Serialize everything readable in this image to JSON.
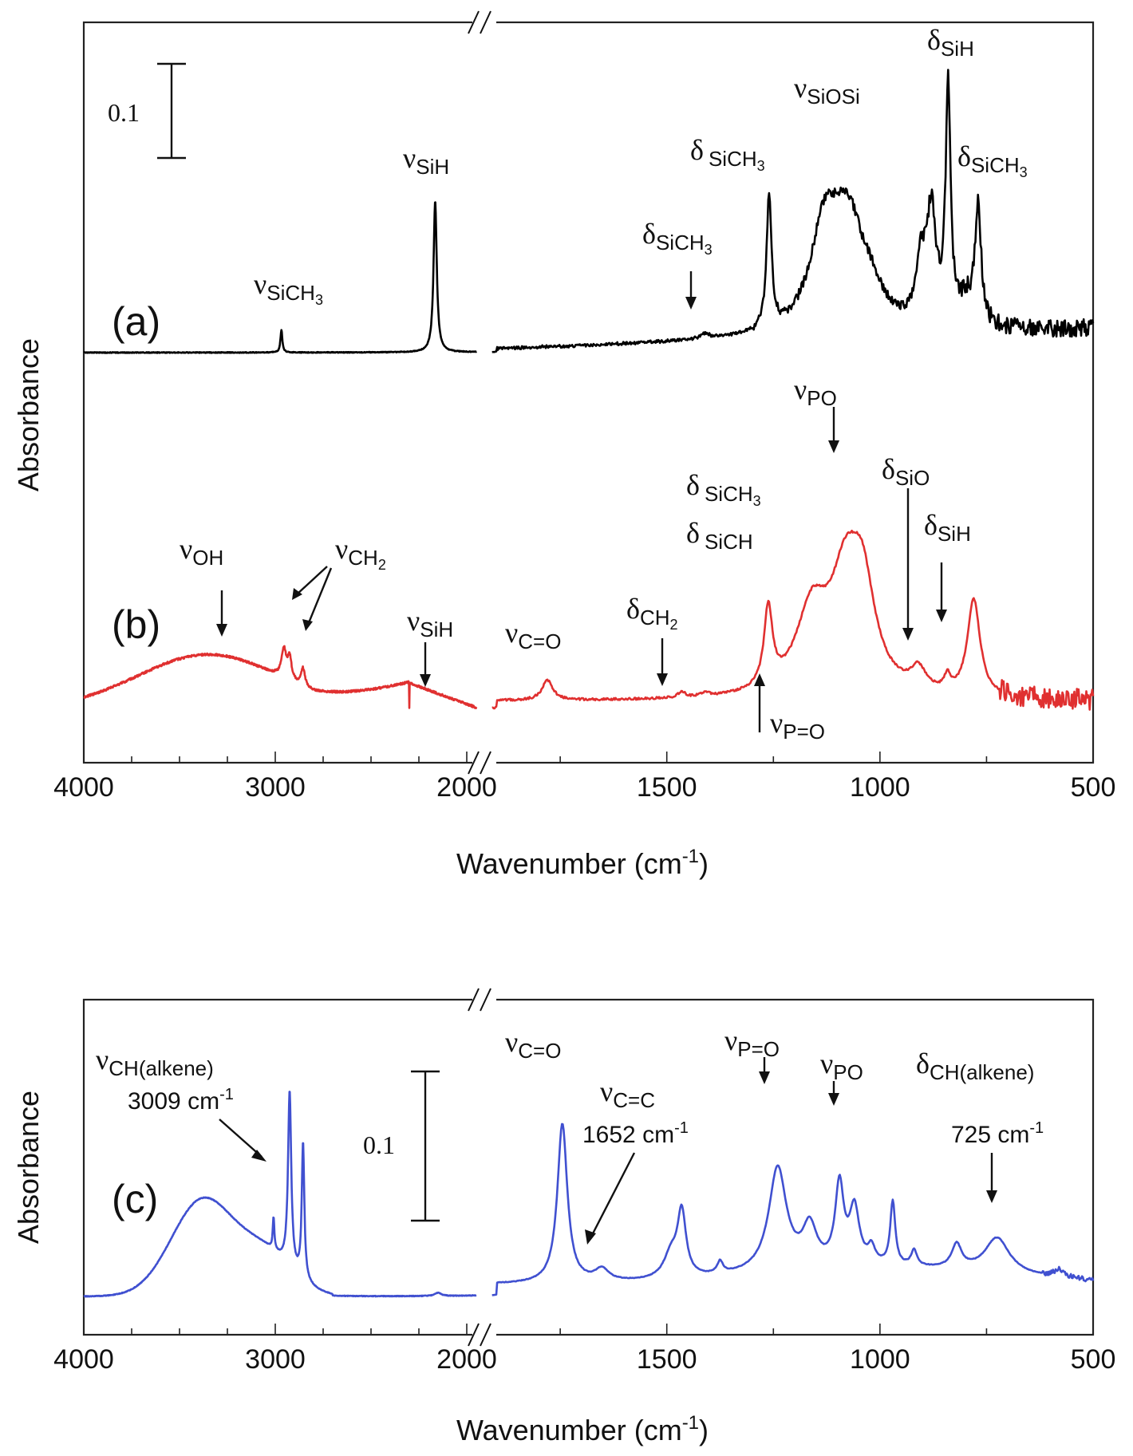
{
  "chart_data": [
    {
      "type": "line",
      "panel_label": "(a)",
      "ylabel": "Absorbance",
      "xlabel": "Wavenumber (cm-1)",
      "xlim": [
        4000,
        500
      ],
      "x_break": [
        1950,
        1900
      ],
      "x_ticks": [
        "4000",
        "3000",
        "2000",
        "1500",
        "1000",
        "500"
      ],
      "scale_bar": "0.1",
      "series": [
        {
          "color": "#000000",
          "peaks": [
            {
              "x": 2970,
              "y": 0.02
            },
            {
              "x": 2165,
              "y": 0.23
            },
            {
              "x": 1410,
              "y": 0.02
            },
            {
              "x": 1260,
              "y": 0.23
            },
            {
              "x": 1090,
              "y": 0.33
            },
            {
              "x": 890,
              "y": 0.27
            },
            {
              "x": 840,
              "y": 0.37
            },
            {
              "x": 770,
              "y": 0.16
            }
          ]
        }
      ],
      "annotations": [
        {
          "greek": "ν",
          "sub": "SiCH",
          "sub2": "3"
        },
        {
          "greek": "ν",
          "sub": "SiH"
        },
        {
          "greek": "δ",
          "sub": "SiCH",
          "sub2": "3"
        },
        {
          "greek": "δ",
          "sub": "SiCH",
          "sub2": "3"
        },
        {
          "greek": "ν",
          "sub": "SiOSi"
        },
        {
          "greek": "δ",
          "sub": "SiH"
        },
        {
          "greek": "δ",
          "sub": "SiCH",
          "sub2": "3"
        }
      ]
    },
    {
      "type": "line",
      "panel_label": "(b)",
      "ylabel": "Absorbance",
      "xlabel": "Wavenumber (cm-1)",
      "xlim": [
        4000,
        500
      ],
      "x_break": [
        1950,
        1900
      ],
      "x_ticks": [
        "4000",
        "3000",
        "2000",
        "1500",
        "1000",
        "500"
      ],
      "series": [
        {
          "color": "#e03030",
          "peaks": [
            {
              "x": 3300,
              "y": 0.08
            },
            {
              "x": 2950,
              "y": 0.11
            },
            {
              "x": 1780,
              "y": 0.04
            },
            {
              "x": 1465,
              "y": 0.01
            },
            {
              "x": 1260,
              "y": 0.13
            },
            {
              "x": 1050,
              "y": 0.29
            },
            {
              "x": 910,
              "y": 0.03
            },
            {
              "x": 780,
              "y": 0.15
            }
          ]
        }
      ],
      "annotations": [
        {
          "greek": "ν",
          "sub": "OH"
        },
        {
          "greek": "ν",
          "sub": "CH",
          "sub2": "2"
        },
        {
          "greek": "ν",
          "sub": "SiH"
        },
        {
          "greek": "ν",
          "sub": "C=O"
        },
        {
          "greek": "δ",
          "sub": "CH",
          "sub2": "2"
        },
        {
          "greek": "δ",
          "sub": "SiCH",
          "sub2": "3"
        },
        {
          "greek": "δ",
          "sub": "SiCH"
        },
        {
          "greek": "ν",
          "sub": "PO"
        },
        {
          "greek": "δ",
          "sub": "SiO"
        },
        {
          "greek": "δ",
          "sub": "SiH"
        },
        {
          "greek": "ν",
          "sub": "P=O"
        }
      ]
    },
    {
      "type": "line",
      "panel_label": "(c)",
      "ylabel": "Absorbance",
      "xlabel": "Wavenumber (cm-1)",
      "xlim": [
        4000,
        500
      ],
      "x_break": [
        1950,
        1900
      ],
      "x_ticks": [
        "4000",
        "3000",
        "2000",
        "1500",
        "1000",
        "500"
      ],
      "scale_bar": "0.1",
      "series": [
        {
          "color": "#4050d0",
          "peaks": [
            {
              "x": 3380,
              "y": 0.13
            },
            {
              "x": 3009,
              "y": 0.04
            },
            {
              "x": 2925,
              "y": 0.25
            },
            {
              "x": 2855,
              "y": 0.18
            },
            {
              "x": 1745,
              "y": 0.22
            },
            {
              "x": 1652,
              "y": 0.03
            },
            {
              "x": 1465,
              "y": 0.09
            },
            {
              "x": 1240,
              "y": 0.17
            },
            {
              "x": 1165,
              "y": 0.07
            },
            {
              "x": 1095,
              "y": 0.14
            },
            {
              "x": 1060,
              "y": 0.1
            },
            {
              "x": 970,
              "y": 0.09
            },
            {
              "x": 725,
              "y": 0.06
            }
          ]
        }
      ],
      "annotations": [
        {
          "greek": "ν",
          "sub": "CH(alkene)"
        },
        {
          "text": "3009 cm",
          "sup": "-1"
        },
        {
          "greek": "ν",
          "sub": "C=O"
        },
        {
          "greek": "ν",
          "sub": "C=C"
        },
        {
          "text": "1652 cm",
          "sup": "-1"
        },
        {
          "greek": "ν",
          "sub": "P=O"
        },
        {
          "greek": "ν",
          "sub": "PO"
        },
        {
          "greek": "δ",
          "sub": "CH(alkene)"
        },
        {
          "text": "725 cm",
          "sup": "-1"
        }
      ]
    }
  ]
}
